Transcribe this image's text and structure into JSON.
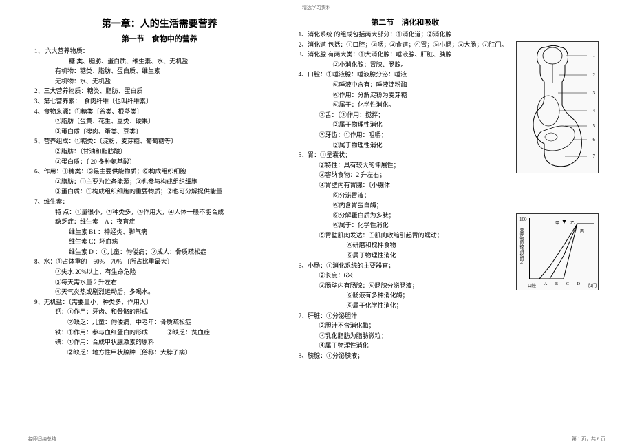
{
  "header_note": "精选学习资料",
  "left": {
    "chapter_title": "第一章：人的生活需要营养",
    "section_title": "第一节　食物中的营养",
    "lines": [
      {
        "cls": "",
        "text": "1、  六大营养物质："
      },
      {
        "cls": "indent2",
        "text": "糖  类、脂肪、蛋白质、维生素、水、无机盐"
      },
      {
        "cls": "indent1",
        "text": "有机物：糖类、脂肪、蛋白质、维生素"
      },
      {
        "cls": "indent1",
        "text": "无机物：水、无机盐"
      },
      {
        "cls": "",
        "text": "2、三大营养物质：糖类、脂肪、蛋白质"
      },
      {
        "cls": "",
        "text": "3、第七营养素：　食肉纤维〔也叫纤维素〕"
      },
      {
        "cls": "",
        "text": "4、食物来源：①糖类〔谷类、根茎类〕"
      },
      {
        "cls": "indent1",
        "text": "②脂肪〔蛋黄、花生、豆类、硬果〕"
      },
      {
        "cls": "indent1",
        "text": "③蛋白质〔瘦肉、蛋类、豆类〕"
      },
      {
        "cls": "",
        "text": "5、营养组成：①糖类：〔淀粉、麦芽糖、葡萄糖等〕"
      },
      {
        "cls": "indent1",
        "text": "②脂肪：〔甘油和脂肪酸〕"
      },
      {
        "cls": "indent1",
        "text": "③蛋白质：〔 20 多种氨基酸〕"
      },
      {
        "cls": "",
        "text": "6、作用：①糖类：⑥最主要供能物质；⑥构成组织细胞"
      },
      {
        "cls": "indent1",
        "text": "②脂肪：①主要为贮备能源；②也参与构成组织细胞"
      },
      {
        "cls": "indent1",
        "text": "③蛋白质：①构成组织细胞的重要物质；②也可分解提供能量"
      },
      {
        "cls": "",
        "text": "7、维生素："
      },
      {
        "cls": "indent1",
        "text": "特    点：①量很小，②种类多，③作用大，④人体一般不能合成"
      },
      {
        "cls": "indent1",
        "text": "缺乏症：维生素　A ：夜盲症"
      },
      {
        "cls": "indent2",
        "text": "维生素  B1 ：神经炎、脚气病"
      },
      {
        "cls": "indent2",
        "text": "维生素  C：坏血病"
      },
      {
        "cls": "indent2",
        "text": "维生素  D ：①儿童：佝偻病；②成人：骨质疏松症"
      },
      {
        "cls": "",
        "text": "8、水：①占体重的　60%—70% 〔所占比重最大〕"
      },
      {
        "cls": "indent1",
        "text": "②失水  20%以上，有生命危险"
      },
      {
        "cls": "indent1",
        "text": "③每天需水量  2 升左右"
      },
      {
        "cls": "indent1",
        "text": "④天气炎热或剧烈运动后，多喝水。"
      },
      {
        "cls": "",
        "text": "9、无机盐：〔需要量小，种类多，作用大〕"
      },
      {
        "cls": "indent1",
        "text": "钙：①作用：牙齿、和骨骼的形成"
      },
      {
        "cls": "indent1",
        "text": "　　②缺乏：儿童：佝偻病，中老年：骨质疏松症"
      },
      {
        "cls": "indent1",
        "text": "铁：①作用：参与血红蛋白的形成　　　②缺乏：贫血症"
      },
      {
        "cls": "indent1",
        "text": "碘：①作用：合成甲状腺激素的原料"
      },
      {
        "cls": "indent1",
        "text": "　　②缺乏：地方性甲状腺肿〔俗称：大脖子病〕"
      }
    ]
  },
  "right": {
    "section_title": "第二节　消化和吸收",
    "lines": [
      {
        "cls": "",
        "text": "1、消化系统 的组成包括两大部分：①消化道；②消化腺"
      },
      {
        "cls": "",
        "text": "2、消化道 包括：①口腔；②咽；③食道；④胃；⑤小肠；⑥大肠；⑦肛门。"
      },
      {
        "cls": "",
        "text": "3、消化腺 有两大类：①大消化腺：唾液腺、肝脏、胰腺"
      },
      {
        "cls": "indent2",
        "text": "②小消化腺：胃腺、肠腺。"
      },
      {
        "cls": "",
        "text": "4、口腔：①唾液腺：唾液腺分泌：唾液"
      },
      {
        "cls": "indent2",
        "text": "⑥唾液中含有：唾液淀粉酶"
      },
      {
        "cls": "indent2",
        "text": "⑥作用：分解淀粉为麦芽糖"
      },
      {
        "cls": "indent2",
        "text": "⑥属于：化学性消化。"
      },
      {
        "cls": "indent1",
        "text": "②舌：〔①作用：搅拌；"
      },
      {
        "cls": "indent2",
        "text": "②属于物理性消化"
      },
      {
        "cls": "indent1",
        "text": "③牙齿：①作用：咀嚼；"
      },
      {
        "cls": "indent2",
        "text": "②属于物理性消化"
      },
      {
        "cls": "",
        "text": "5、胃：①呈囊状；"
      },
      {
        "cls": "indent1",
        "text": "②特性：具有较大的伸展性；"
      },
      {
        "cls": "indent1",
        "text": "③容纳食物：2 升左右；"
      },
      {
        "cls": "indent1",
        "text": "④胃壁内有胃腺：〔小腺体"
      },
      {
        "cls": "indent2",
        "text": "⑥分泌胃液；"
      },
      {
        "cls": "indent2",
        "text": "⑥内含胃蛋白酶；"
      },
      {
        "cls": "indent2",
        "text": "⑥分解蛋白质为多肽；"
      },
      {
        "cls": "indent2",
        "text": "⑥属于：化学性消化"
      },
      {
        "cls": "indent1",
        "text": "⑤胃壁肌肉发达：①肌肉收缩引起胃的蠕动；"
      },
      {
        "cls": "indent3",
        "text": "⑥研磨和搅拌食物"
      },
      {
        "cls": "indent3",
        "text": "⑥属于物理性消化"
      },
      {
        "cls": "",
        "text": "6、小肠：①消化系统的主要器官；"
      },
      {
        "cls": "indent1",
        "text": "②长度：6米"
      },
      {
        "cls": "indent1",
        "text": "③肠壁内有肠腺：⑥肠腺分泌肠液；"
      },
      {
        "cls": "indent3",
        "text": "⑥肠液有多种消化酶；"
      },
      {
        "cls": "indent3",
        "text": "⑥属于化学性消化；"
      },
      {
        "cls": "",
        "text": "7、肝脏：①分泌胆汁"
      },
      {
        "cls": "indent1",
        "text": "②胆汁不含消化酶；"
      },
      {
        "cls": "indent1",
        "text": "③乳化脂肪为脂肪微粒；"
      },
      {
        "cls": "indent1",
        "text": "④属于物理性消化"
      },
      {
        "cls": "",
        "text": "8、胰腺：①分泌胰液；"
      }
    ]
  },
  "anatomy": {
    "labels": [
      "1",
      "2",
      "3",
      "4",
      "5",
      "6",
      "7"
    ]
  },
  "chart": {
    "y_max": "100",
    "y_label": "营养物质被消化的%",
    "letters": [
      "甲",
      "乙",
      "丙"
    ],
    "x_labels": [
      "口腔",
      "A",
      "B",
      "C",
      "D",
      "肛门"
    ]
  },
  "footer_left": "名师归纳总结",
  "footer_right": "第 1 页，共 6 页"
}
